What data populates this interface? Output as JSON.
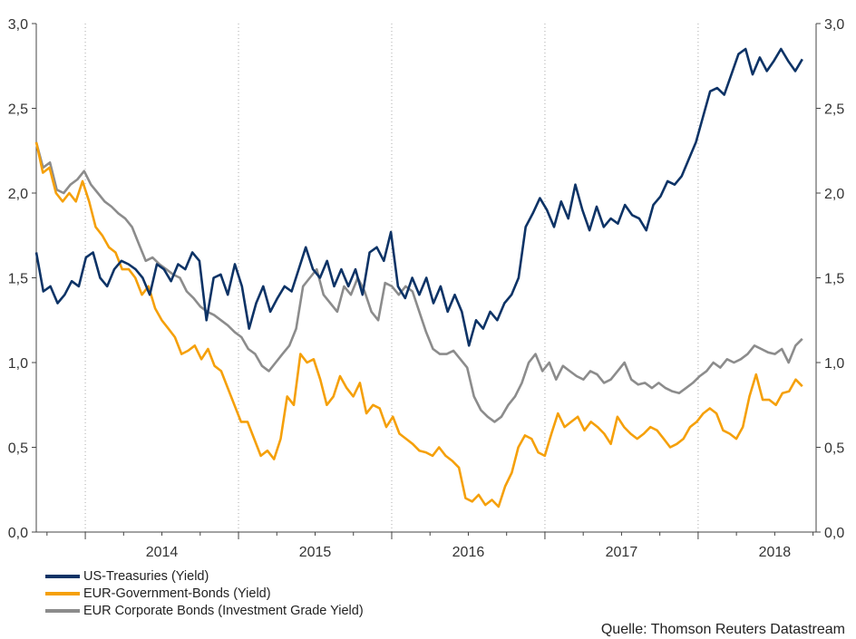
{
  "chart_data": {
    "type": "line",
    "title": "",
    "xlabel": "",
    "ylabel": "",
    "ylim": [
      0,
      3.0
    ],
    "xlim": [
      2013.68,
      2018.77
    ],
    "y_ticks": [
      "0,0",
      "0,5",
      "1,0",
      "1,5",
      "2,0",
      "2,5",
      "3,0"
    ],
    "y_tick_values": [
      0,
      0.5,
      1.0,
      1.5,
      2.0,
      2.5,
      3.0
    ],
    "x_tick_labels": [
      "2014",
      "2015",
      "2016",
      "2017",
      "2018"
    ],
    "x_year_boundaries": [
      2014,
      2015,
      2016,
      2017,
      2018
    ],
    "grid": "vertical dotted at year boundaries",
    "legend_position": "bottom-left",
    "series_time_range": [
      2013.68,
      2018.68
    ],
    "series": [
      {
        "name": "US-Treasuries (Yield)",
        "color": "#0d3366",
        "values": [
          1.65,
          1.42,
          1.45,
          1.35,
          1.4,
          1.48,
          1.45,
          1.62,
          1.65,
          1.5,
          1.45,
          1.55,
          1.6,
          1.58,
          1.55,
          1.5,
          1.4,
          1.58,
          1.55,
          1.48,
          1.58,
          1.55,
          1.65,
          1.6,
          1.25,
          1.5,
          1.52,
          1.4,
          1.58,
          1.45,
          1.2,
          1.35,
          1.45,
          1.3,
          1.38,
          1.45,
          1.42,
          1.55,
          1.68,
          1.55,
          1.5,
          1.6,
          1.45,
          1.55,
          1.45,
          1.55,
          1.4,
          1.65,
          1.68,
          1.6,
          1.77,
          1.45,
          1.38,
          1.5,
          1.4,
          1.5,
          1.35,
          1.45,
          1.3,
          1.4,
          1.3,
          1.1,
          1.25,
          1.2,
          1.3,
          1.25,
          1.35,
          1.4,
          1.5,
          1.8,
          1.88,
          1.97,
          1.9,
          1.8,
          1.95,
          1.85,
          2.05,
          1.9,
          1.78,
          1.92,
          1.8,
          1.85,
          1.82,
          1.93,
          1.87,
          1.85,
          1.78,
          1.93,
          1.98,
          2.07,
          2.05,
          2.1,
          2.2,
          2.3,
          2.45,
          2.6,
          2.62,
          2.58,
          2.7,
          2.82,
          2.85,
          2.7,
          2.8,
          2.72,
          2.78,
          2.85,
          2.78,
          2.72,
          2.79
        ]
      },
      {
        "name": "EUR-Government-Bonds (Yield)",
        "color": "#f5a00a",
        "values": [
          2.3,
          2.12,
          2.15,
          2.0,
          1.95,
          2.0,
          1.95,
          2.07,
          1.95,
          1.8,
          1.75,
          1.68,
          1.65,
          1.55,
          1.55,
          1.5,
          1.4,
          1.45,
          1.32,
          1.25,
          1.2,
          1.15,
          1.05,
          1.07,
          1.1,
          1.02,
          1.08,
          0.98,
          0.95,
          0.85,
          0.75,
          0.65,
          0.65,
          0.55,
          0.45,
          0.48,
          0.43,
          0.55,
          0.8,
          0.75,
          1.05,
          1.0,
          1.02,
          0.9,
          0.75,
          0.8,
          0.92,
          0.85,
          0.8,
          0.88,
          0.7,
          0.75,
          0.73,
          0.62,
          0.68,
          0.58,
          0.55,
          0.52,
          0.48,
          0.47,
          0.45,
          0.5,
          0.45,
          0.42,
          0.38,
          0.2,
          0.18,
          0.22,
          0.16,
          0.19,
          0.15,
          0.27,
          0.35,
          0.5,
          0.57,
          0.55,
          0.47,
          0.45,
          0.58,
          0.7,
          0.62,
          0.65,
          0.68,
          0.6,
          0.65,
          0.62,
          0.58,
          0.52,
          0.68,
          0.62,
          0.58,
          0.55,
          0.58,
          0.62,
          0.6,
          0.55,
          0.5,
          0.52,
          0.55,
          0.62,
          0.65,
          0.7,
          0.73,
          0.7,
          0.6,
          0.58,
          0.55,
          0.62,
          0.8,
          0.93,
          0.78,
          0.78,
          0.75,
          0.82,
          0.83,
          0.9,
          0.86
        ]
      },
      {
        "name": "EUR Corporate Bonds (Investment Grade Yield)",
        "color": "#8c8c8c",
        "values": [
          2.3,
          2.15,
          2.18,
          2.02,
          2.0,
          2.05,
          2.08,
          2.13,
          2.05,
          2.0,
          1.95,
          1.92,
          1.88,
          1.85,
          1.8,
          1.7,
          1.6,
          1.62,
          1.58,
          1.55,
          1.52,
          1.5,
          1.42,
          1.38,
          1.33,
          1.3,
          1.28,
          1.25,
          1.22,
          1.18,
          1.15,
          1.08,
          1.05,
          0.98,
          0.95,
          1.0,
          1.05,
          1.1,
          1.2,
          1.45,
          1.5,
          1.55,
          1.4,
          1.35,
          1.3,
          1.45,
          1.4,
          1.5,
          1.42,
          1.3,
          1.25,
          1.47,
          1.45,
          1.4,
          1.45,
          1.42,
          1.3,
          1.18,
          1.08,
          1.05,
          1.05,
          1.07,
          1.02,
          0.97,
          0.8,
          0.72,
          0.68,
          0.65,
          0.68,
          0.75,
          0.8,
          0.88,
          1.0,
          1.05,
          0.95,
          1.0,
          0.9,
          0.98,
          0.95,
          0.92,
          0.9,
          0.95,
          0.93,
          0.88,
          0.9,
          0.95,
          1.0,
          0.9,
          0.87,
          0.88,
          0.85,
          0.88,
          0.85,
          0.83,
          0.82,
          0.85,
          0.88,
          0.92,
          0.95,
          1.0,
          0.97,
          1.02,
          1.0,
          1.02,
          1.05,
          1.1,
          1.08,
          1.06,
          1.05,
          1.08,
          1.0,
          1.1,
          1.14
        ]
      }
    ],
    "source": "Quelle: Thomson Reuters Datastream"
  }
}
